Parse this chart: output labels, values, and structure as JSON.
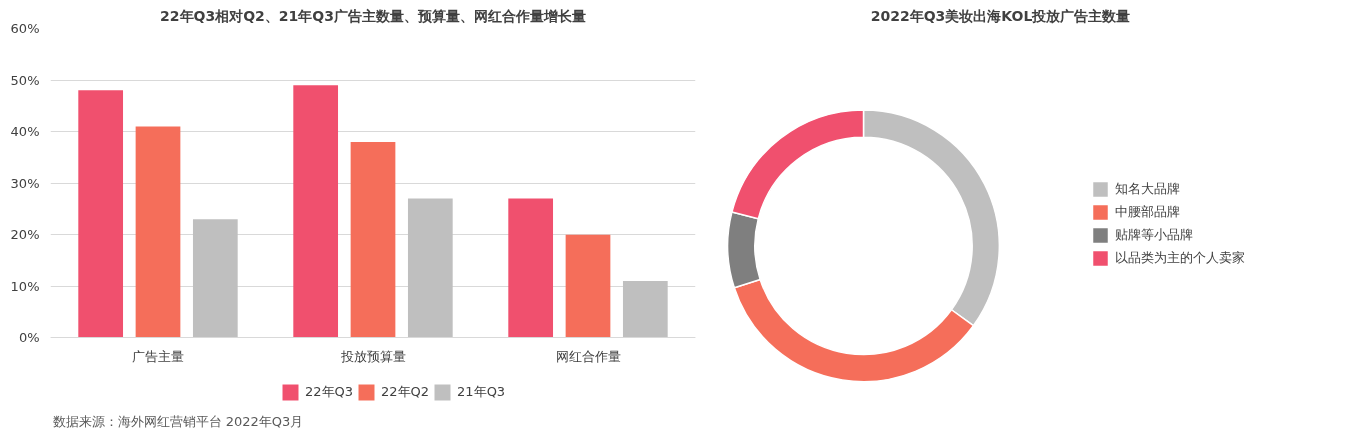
{
  "chart_data": [
    {
      "type": "bar",
      "title": "22年Q3相对Q2、21年Q3广告主数量、预算量、网红合作量增长量",
      "categories": [
        "广告主量",
        "投放预算量",
        "网红合作量"
      ],
      "series": [
        {
          "name": "22年Q3",
          "color": "#f0506e",
          "values": [
            48,
            49,
            27
          ]
        },
        {
          "name": "22年Q2",
          "color": "#f56e5a",
          "values": [
            41,
            38,
            20
          ]
        },
        {
          "name": "21年Q3",
          "color": "#bfbfbf",
          "values": [
            23,
            27,
            11
          ]
        }
      ],
      "ylim": [
        0,
        60
      ],
      "yticks": [
        {
          "value": 0,
          "label": "0%"
        },
        {
          "value": 10,
          "label": "10%"
        },
        {
          "value": 20,
          "label": "20%"
        },
        {
          "value": 30,
          "label": "30%"
        },
        {
          "value": 40,
          "label": "40%"
        },
        {
          "value": 50,
          "label": "50%"
        },
        {
          "value": 60,
          "label": "60%"
        }
      ],
      "grid": "y",
      "legend": "bottom",
      "annotations": [
        "数据来源：海外网红营销平台 2022年Q3月"
      ]
    },
    {
      "type": "donut",
      "title": "2022年Q3美妆出海KOL投放广告主数量",
      "categories": [
        "知名大品牌",
        "中腰部品牌",
        "贴牌等小品牌",
        "以品类为主的个人卖家"
      ],
      "values": [
        35,
        35,
        9,
        21
      ],
      "colors": [
        "#bfbfbf",
        "#f56e5a",
        "#7f7f7f",
        "#f0506e"
      ],
      "legend": "right"
    }
  ]
}
